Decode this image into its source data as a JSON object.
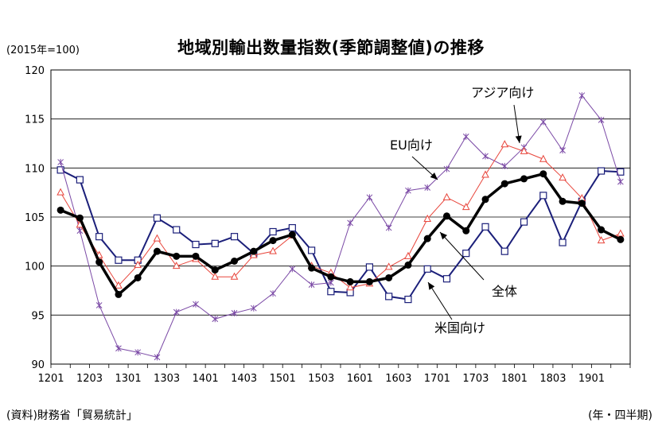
{
  "chart_data": {
    "type": "line",
    "title": "地域別輸出数量指数(季節調整値)の推移",
    "unit_note": "(2015年=100)",
    "source_note": "(資料)財務省「貿易統計」",
    "x_unit_note": "(年・四半期)",
    "x": [
      "1201",
      "1202",
      "1203",
      "1204",
      "1301",
      "1302",
      "1303",
      "1304",
      "1401",
      "1402",
      "1403",
      "1404",
      "1501",
      "1502",
      "1503",
      "1504",
      "1601",
      "1602",
      "1603",
      "1604",
      "1701",
      "1702",
      "1703",
      "1704",
      "1801",
      "1802",
      "1803",
      "1804",
      "1901",
      "1902"
    ],
    "x_tick_labels": [
      "1201",
      "1203",
      "1301",
      "1303",
      "1401",
      "1403",
      "1501",
      "1503",
      "1601",
      "1603",
      "1701",
      "1703",
      "1801",
      "1803",
      "1901"
    ],
    "ylim": [
      90,
      120
    ],
    "y_ticks": [
      90,
      95,
      100,
      105,
      110,
      115,
      120
    ],
    "grid": true,
    "legend": "none",
    "series": [
      {
        "name": "米国向け",
        "color": "#1b1f7a",
        "marker": "square",
        "values": [
          109.8,
          108.8,
          103.0,
          100.6,
          100.6,
          104.9,
          103.7,
          102.2,
          102.3,
          103.0,
          101.3,
          103.5,
          103.9,
          101.6,
          97.4,
          97.3,
          99.9,
          96.9,
          96.6,
          99.7,
          98.7,
          101.3,
          104.0,
          101.5,
          104.5,
          107.2,
          102.4,
          106.6,
          109.7,
          109.6
        ]
      },
      {
        "name": "EU向け",
        "color": "#7b4aa6",
        "marker": "x",
        "values": [
          110.6,
          103.6,
          96.0,
          91.6,
          91.2,
          90.7,
          95.3,
          96.1,
          94.6,
          95.2,
          95.7,
          97.2,
          99.7,
          98.1,
          98.3,
          104.4,
          107.0,
          103.9,
          107.7,
          108.0,
          109.9,
          113.2,
          111.2,
          110.2,
          112.1,
          114.7,
          111.8,
          117.4,
          114.9,
          108.6
        ]
      },
      {
        "name": "アジア向け",
        "color": "#e8463c",
        "marker": "triangle",
        "values": [
          107.5,
          104.2,
          101.1,
          98.0,
          100.1,
          102.8,
          100.0,
          100.7,
          98.9,
          98.9,
          101.1,
          101.5,
          103.1,
          100.0,
          99.3,
          97.8,
          98.2,
          99.9,
          101.0,
          104.8,
          107.0,
          106.0,
          109.3,
          112.4,
          111.7,
          110.9,
          109.0,
          106.9,
          102.6,
          103.3
        ]
      },
      {
        "name": "全体",
        "color": "#000000",
        "marker": "circle",
        "bold": true,
        "values": [
          105.7,
          104.9,
          100.4,
          97.1,
          98.8,
          101.5,
          101.0,
          101.0,
          99.6,
          100.5,
          101.5,
          102.6,
          103.2,
          99.8,
          98.9,
          98.4,
          98.4,
          98.8,
          100.1,
          102.8,
          105.1,
          103.6,
          106.8,
          108.4,
          108.9,
          109.4,
          106.6,
          106.4,
          103.7,
          102.7
        ]
      }
    ],
    "annotations": [
      {
        "text": "アジア向け",
        "series": "アジア向け"
      },
      {
        "text": "EU向け",
        "series": "EU向け"
      },
      {
        "text": "全体",
        "series": "全体"
      },
      {
        "text": "米国向け",
        "series": "米国向け"
      }
    ]
  }
}
